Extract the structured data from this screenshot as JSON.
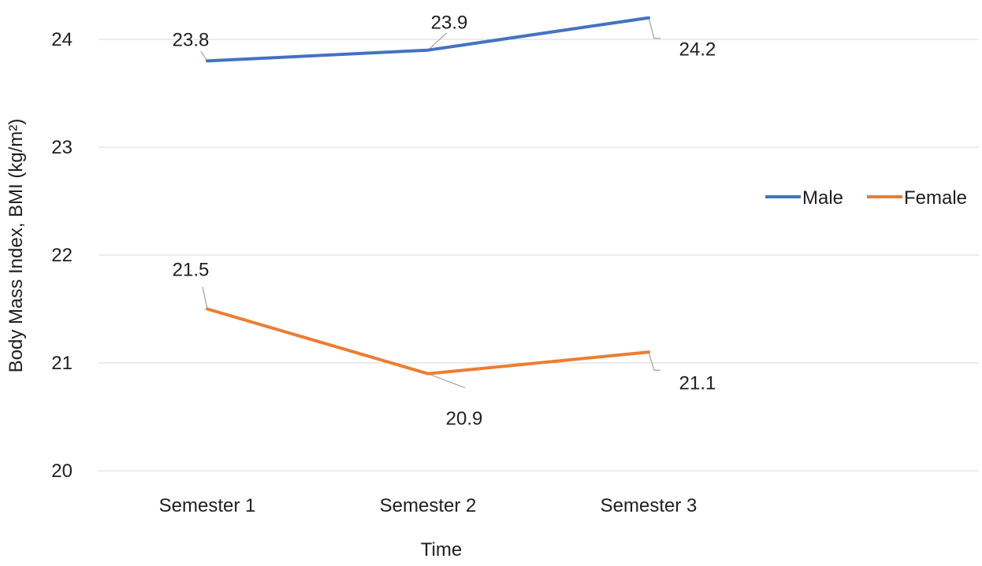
{
  "chart_data": {
    "type": "line",
    "title": "",
    "xlabel": "Time",
    "ylabel": "Body Mass Index, BMI (kg/m²)",
    "categories": [
      "Semester 1",
      "Semester 2",
      "Semester 3"
    ],
    "ylim": [
      20,
      24.2
    ],
    "yticks": [
      20,
      21,
      22,
      23,
      24
    ],
    "grid": true,
    "legend_position": "right",
    "series": [
      {
        "name": "Male",
        "color": "#4472C4",
        "values": [
          23.8,
          23.9,
          24.2
        ],
        "labels": [
          "23.8",
          "23.9",
          "24.2"
        ]
      },
      {
        "name": "Female",
        "color": "#ED7D31",
        "values": [
          21.5,
          20.9,
          21.1
        ],
        "labels": [
          "21.5",
          "20.9",
          "21.1"
        ]
      }
    ]
  }
}
